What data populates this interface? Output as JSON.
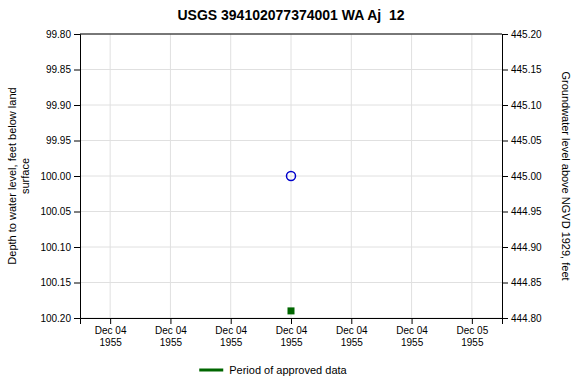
{
  "chart_data": {
    "type": "scatter",
    "title": "USGS 394102077374001 WA Aj  12",
    "y_label": "Depth to water level, feet below land\nsurface",
    "y2_label": "Groundwater level above NGVD 1929, feet",
    "categories": [
      "Dec 04\n1955",
      "Dec 04\n1955",
      "Dec 04\n1955",
      "Dec 04\n1955",
      "Dec 04\n1955",
      "Dec 04\n1955",
      "Dec 05\n1955"
    ],
    "series": [
      {
        "color": "#0000cc",
        "marker": "open-circle",
        "values": [
          null,
          null,
          null,
          100.0,
          null,
          null,
          null
        ]
      },
      {
        "name": "Period of approved data",
        "color": "#006600",
        "marker": "square",
        "values": [
          null,
          null,
          null,
          100.19,
          null,
          null,
          null
        ]
      }
    ],
    "ylim": [
      100.2,
      99.8
    ],
    "yticks": [
      {
        "value": 99.8,
        "label": "99.80"
      },
      {
        "value": 99.85,
        "label": "99.85"
      },
      {
        "value": 99.9,
        "label": "99.90"
      },
      {
        "value": 99.95,
        "label": "99.95"
      },
      {
        "value": 100.0,
        "label": "100.00"
      },
      {
        "value": 100.05,
        "label": "100.05"
      },
      {
        "value": 100.1,
        "label": "100.10"
      },
      {
        "value": 100.15,
        "label": "100.15"
      },
      {
        "value": 100.2,
        "label": "100.20"
      }
    ],
    "y2lim": [
      444.8,
      445.2
    ],
    "y2ticks": [
      {
        "value": 445.2,
        "label": "445.20"
      },
      {
        "value": 445.15,
        "label": "445.15"
      },
      {
        "value": 445.1,
        "label": "445.10"
      },
      {
        "value": 445.05,
        "label": "445.05"
      },
      {
        "value": 445.0,
        "label": "445.00"
      },
      {
        "value": 444.95,
        "label": "444.95"
      },
      {
        "value": 444.9,
        "label": "444.90"
      },
      {
        "value": 444.85,
        "label": "444.85"
      },
      {
        "value": 444.8,
        "label": "444.80"
      }
    ],
    "grid": true,
    "legend": "bottom"
  }
}
